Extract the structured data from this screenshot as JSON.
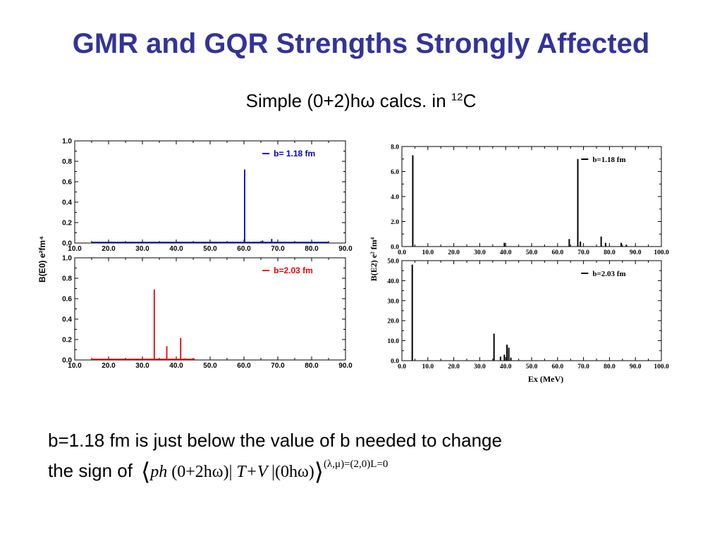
{
  "slide": {
    "title": "GMR and GQR Strengths Strongly Affected",
    "subtitle_main": "Simple (0+2)hω calcs. in ",
    "subtitle_sup": "12",
    "subtitle_end": "C",
    "body_line1": "b=1.18 fm is just below the value of b needed to change",
    "body_line2": "the sign of",
    "formula": {
      "left": "ph",
      "op1": "(0+2hω)|",
      "mid": "T+V",
      "op2": "|(0hω)",
      "superscript": "(λ,μ)=(2,0)L=0"
    }
  },
  "colors": {
    "title": "#333399",
    "blue": "#0000cc",
    "red": "#ee0000",
    "black": "#000000"
  },
  "chart_data": [
    {
      "type": "bar",
      "panel": "left-top",
      "legend": "b= 1.18 fm",
      "legend_placement": "top-right",
      "color": "#0000cc",
      "xlim": [
        10,
        90
      ],
      "ylim": [
        0,
        1.0
      ],
      "xticks": [
        "10.0",
        "20.0",
        "30.0",
        "40.0",
        "50.0",
        "60.0",
        "70.0",
        "80.0",
        "90.0"
      ],
      "yticks": [
        "0.0",
        "0.2",
        "0.4",
        "0.6",
        "0.8",
        "1.0"
      ],
      "baseline": [
        15,
        85
      ],
      "x": [
        20.5,
        35.2,
        40.5,
        60.2,
        65.5,
        68.2,
        77.5
      ],
      "values": [
        0.012,
        0.01,
        0.012,
        0.72,
        0.025,
        0.04,
        0.012
      ]
    },
    {
      "type": "bar",
      "panel": "left-bottom",
      "legend": "b=2.03 fm",
      "legend_placement": "top-right",
      "color": "#ee0000",
      "xlim": [
        10,
        90
      ],
      "ylim": [
        0,
        1.0
      ],
      "xticks": [
        "10.0",
        "20.0",
        "30.0",
        "40.0",
        "50.0",
        "60.0",
        "70.0",
        "80.0",
        "90.0"
      ],
      "yticks": [
        "0.0",
        "0.2",
        "0.4",
        "0.6",
        "0.8",
        "1.0"
      ],
      "xlabel": "",
      "ylabel": "B(E0) e²fm⁴",
      "baseline": [
        15,
        45.5
      ],
      "x": [
        33.5,
        37.2,
        41.3,
        42.5
      ],
      "values": [
        0.69,
        0.135,
        0.215,
        0.015
      ]
    },
    {
      "type": "bar",
      "panel": "right-top",
      "legend": "b=1.18 fm",
      "legend_placement": "top-right",
      "color": "#000000",
      "xlim": [
        0,
        100
      ],
      "ylim": [
        0,
        8.0
      ],
      "xticks": [
        "0.0",
        "10.0",
        "20.0",
        "30.0",
        "40.0",
        "50.0",
        "60.0",
        "70.0",
        "80.0",
        "90.0",
        "100.0"
      ],
      "yticks": [
        "0.0",
        "2.0",
        "4.0",
        "6.0",
        "8.0"
      ],
      "x": [
        4.2,
        39.5,
        64.5,
        67.8,
        68.8,
        76.8,
        78.5,
        84.5,
        86.5
      ],
      "values": [
        7.3,
        0.3,
        0.6,
        7.0,
        0.4,
        0.8,
        0.3,
        0.3,
        0.15
      ]
    },
    {
      "type": "bar",
      "panel": "right-bottom",
      "legend": "b=2.03 fm",
      "legend_placement": "top-right",
      "color": "#000000",
      "xlim": [
        0,
        100
      ],
      "ylim": [
        0,
        50.0
      ],
      "xticks": [
        "0.0",
        "10.0",
        "20.0",
        "30.0",
        "40.0",
        "50.0",
        "60.0",
        "70.0",
        "80.0",
        "90.0",
        "100.0"
      ],
      "yticks": [
        "0.0",
        "10.0",
        "20.0",
        "30.0",
        "40.0",
        "50.0"
      ],
      "xlabel": "Ex (MeV)",
      "ylabel": "B(E2) e² fm⁴",
      "x": [
        4.0,
        35.5,
        38.0,
        39.5,
        40.5,
        41.2,
        42.0
      ],
      "values": [
        48.0,
        13.5,
        2.0,
        3.0,
        8.0,
        6.5,
        1.5
      ]
    }
  ]
}
